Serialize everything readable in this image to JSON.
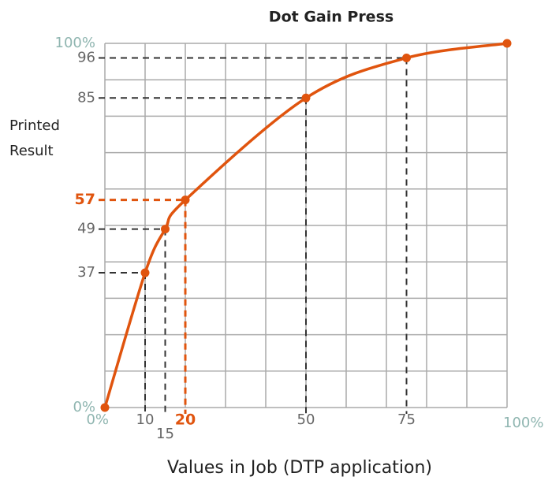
{
  "chart_data": {
    "type": "line",
    "title": "Dot Gain Press",
    "ylabel": [
      "Printed",
      "Result"
    ],
    "xlabel": "Values in Job (DTP application)",
    "x": [
      0,
      10,
      15,
      20,
      50,
      75,
      100
    ],
    "x_labels": [
      "0%",
      "10",
      "15",
      "20",
      "50",
      "75",
      "100%"
    ],
    "series": [
      {
        "name": "Printed Result",
        "color": "#e0540e",
        "values": [
          0,
          37,
          49,
          57,
          85,
          96,
          100
        ],
        "value_labels": [
          "0%",
          "37",
          "49",
          "57",
          "85",
          "96",
          "100%"
        ]
      }
    ],
    "highlight_index": 3,
    "xlim": [
      0,
      100
    ],
    "ylim": [
      0,
      100
    ],
    "xticks": [
      0,
      10,
      20,
      30,
      40,
      50,
      60,
      70,
      80,
      90,
      100
    ],
    "yticks": [
      0,
      10,
      20,
      30,
      40,
      50,
      60,
      70,
      80,
      90,
      100
    ],
    "grid": true
  }
}
